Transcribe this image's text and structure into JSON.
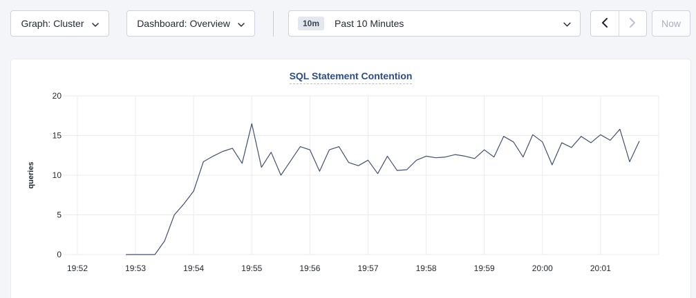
{
  "toolbar": {
    "graph_dropdown_label": "Graph: Cluster",
    "dashboard_dropdown_label": "Dashboard: Overview",
    "time_badge": "10m",
    "time_range_label": "Past 10 Minutes",
    "now_button_label": "Now"
  },
  "chart_data": {
    "type": "line",
    "title": "SQL Statement Contention",
    "xlabel": "",
    "ylabel": "queries",
    "ylim": [
      0,
      20
    ],
    "y_ticks": [
      0,
      5,
      10,
      15,
      20
    ],
    "x_tick_labels": [
      "19:52",
      "19:53",
      "19:54",
      "19:55",
      "19:56",
      "19:57",
      "19:58",
      "19:59",
      "20:00",
      "20:01"
    ],
    "grid": true,
    "legend": "none",
    "line_color": "#434f6b",
    "series": [
      {
        "name": "queries",
        "start_time": "19:52:50",
        "interval_seconds": 10,
        "values": [
          0,
          0,
          0,
          0,
          1.7,
          5,
          6.4,
          8,
          11.7,
          12.4,
          13.0,
          13.4,
          11.5,
          16.5,
          11.0,
          12.9,
          10.0,
          11.8,
          13.6,
          13.2,
          10.5,
          13.2,
          13.6,
          11.6,
          11.2,
          11.9,
          10.2,
          12.4,
          10.6,
          10.7,
          11.9,
          12.4,
          12.2,
          12.3,
          12.6,
          12.4,
          12.1,
          13.2,
          12.3,
          14.9,
          14.2,
          12.3,
          15.1,
          14.2,
          11.3,
          14.1,
          13.5,
          14.9,
          14.1,
          15.1,
          14.4,
          15.8,
          11.7,
          14.3
        ]
      }
    ]
  },
  "colors": {
    "page_bg": "#f4f5f9",
    "card_bg": "#ffffff",
    "control_border": "#cdd2dc",
    "text": "#242a35",
    "disabled_text": "#aab1be",
    "title": "#2f4b7c",
    "gridline": "#ebebeb",
    "line": "#434f6b"
  }
}
